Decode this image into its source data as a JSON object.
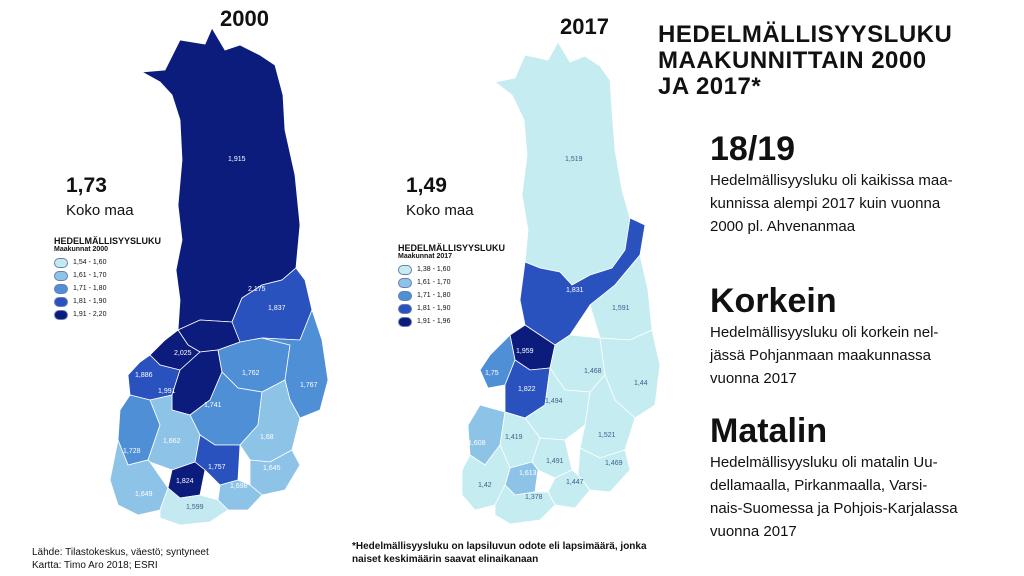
{
  "title_lines": [
    "HEDELMÄLLISYYSLUKU",
    "MAAKUNNITTAIN 2000",
    "JA 2017*"
  ],
  "maps": [
    {
      "year": "2000",
      "national_value": "1,73",
      "national_label": "Koko maa",
      "legend_title": "HEDELMÄLLISYYSLUKU",
      "legend_subtitle": "Maakunnat 2000",
      "legend": [
        {
          "label": "1,54 - 1,60",
          "color": "#c5e9f1"
        },
        {
          "label": "1,61 - 1,70",
          "color": "#8ec3e8"
        },
        {
          "label": "1,71 - 1,80",
          "color": "#4f8fd6"
        },
        {
          "label": "1,81 - 1,90",
          "color": "#2a52be"
        },
        {
          "label": "1,91 - 2,20",
          "color": "#0c1c7c"
        }
      ],
      "regions": [
        "1,915",
        "2,175",
        "1,837",
        "2,025",
        "1,886",
        "1,991",
        "1,762",
        "1,767",
        "1,741",
        "1,662",
        "1,68",
        "1,728",
        "1,757",
        "1,645",
        "1,824",
        "1,698",
        "1,649",
        "1,599"
      ]
    },
    {
      "year": "2017",
      "national_value": "1,49",
      "national_label": "Koko maa",
      "legend_title": "HEDELMÄLLISYYSLUKU",
      "legend_subtitle": "Maakunnat 2017",
      "legend": [
        {
          "label": "1,38 - 1,60",
          "color": "#c5ecf0"
        },
        {
          "label": "1,61 - 1,70",
          "color": "#8ec3e8"
        },
        {
          "label": "1,71 - 1,80",
          "color": "#4f8fd6"
        },
        {
          "label": "1,81 - 1,90",
          "color": "#2a52be"
        },
        {
          "label": "1,91 - 1,96",
          "color": "#0c1c7c"
        }
      ],
      "regions": [
        "1,519",
        "1,831",
        "1,591",
        "1,959",
        "1,75",
        "1,822",
        "1,468",
        "1,44",
        "1,494",
        "1,608",
        "1,419",
        "1,521",
        "1,613",
        "1,491",
        "1,469",
        "1,42",
        "1,447",
        "1,378"
      ]
    }
  ],
  "sections": [
    {
      "heading": "18/19",
      "lines": [
        "Hedelmällisyysluku oli kaikissa maa-",
        "kunnissa alempi 2017 kuin vuonna",
        "2000 pl. Ahvenanmaa"
      ]
    },
    {
      "heading": "Korkein",
      "lines": [
        "Hedelmällisyysluku oli korkein nel-",
        "jässä Pohjanmaan maakunnassa",
        "vuonna 2017"
      ]
    },
    {
      "heading": "Matalin",
      "lines": [
        "Hedelmällisyysluku oli matalin Uu-",
        "dellamaalla, Pirkanmaalla, Varsi-",
        "nais-Suomessa ja Pohjois-Karjalassa",
        "vuonna 2017"
      ]
    }
  ],
  "footnote_lines": [
    "*Hedelmällisyysluku on lapsiluvun odote eli lapsimäärä, jonka",
    "naiset keskimäärin saavat elinaikanaan"
  ],
  "source_lines": [
    "Lähde: Tilastokeskus, väestö; syntyneet",
    "Kartta: Timo Aro 2018; ESRI"
  ]
}
